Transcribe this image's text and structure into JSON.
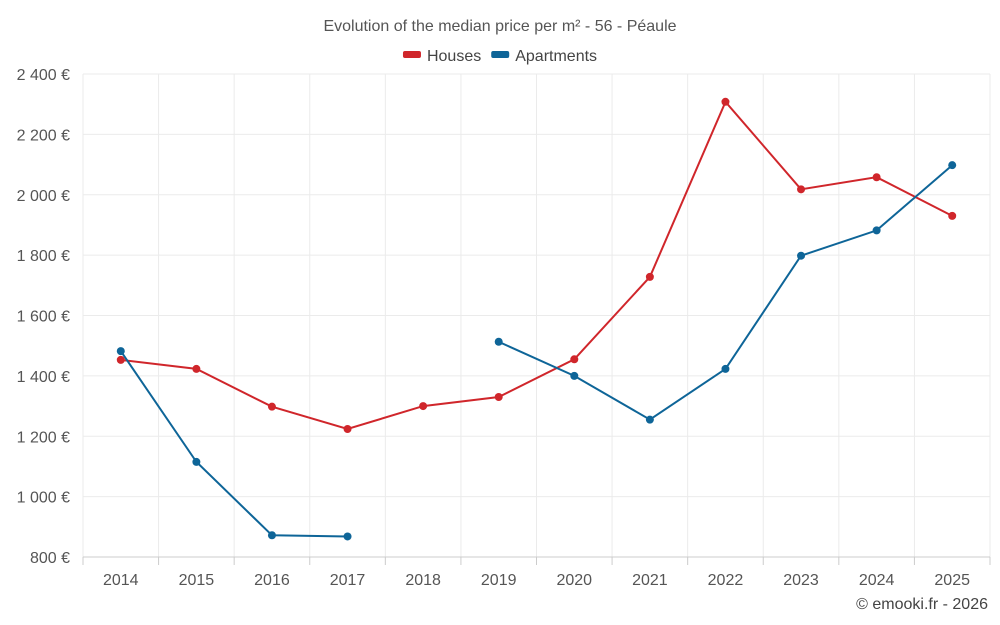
{
  "chart_data": {
    "type": "line",
    "title": "Evolution of the median price per m² - 56 - Péaule",
    "categories": [
      "2014",
      "2015",
      "2016",
      "2017",
      "2018",
      "2019",
      "2020",
      "2021",
      "2022",
      "2023",
      "2024",
      "2025"
    ],
    "ylim": [
      800,
      2400
    ],
    "yticks": [
      800,
      1000,
      1200,
      1400,
      1600,
      1800,
      2000,
      2200,
      2400
    ],
    "ytick_labels": [
      "800 €",
      "1 000 €",
      "1 200 €",
      "1 400 €",
      "1 600 €",
      "1 800 €",
      "2 000 €",
      "2 200 €",
      "2 400 €"
    ],
    "grid": true,
    "legend_position": "top-center",
    "series": [
      {
        "name": "Houses",
        "color": "#d0262b",
        "values": [
          1453,
          1423,
          1298,
          1224,
          1300,
          1330,
          1455,
          1728,
          2308,
          2018,
          2058,
          1930
        ]
      },
      {
        "name": "Apartments",
        "color": "#0e6598",
        "values": [
          1482,
          1115,
          872,
          868,
          null,
          1513,
          1400,
          1255,
          1423,
          1798,
          1882,
          2098
        ]
      }
    ],
    "credit": "© emooki.fr - 2026"
  }
}
